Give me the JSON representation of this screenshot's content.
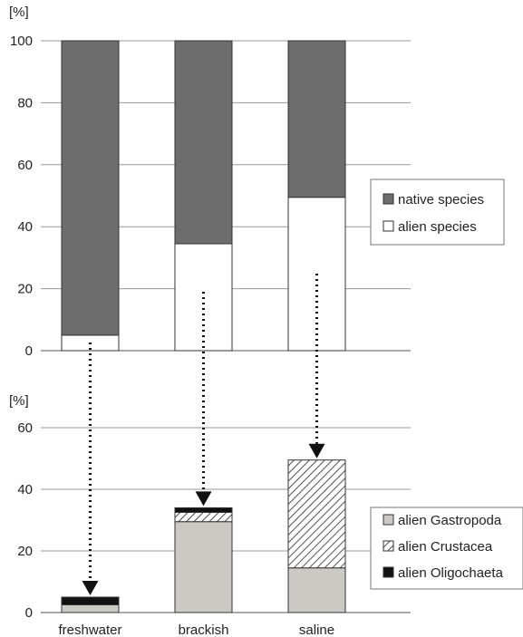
{
  "chart_data": [
    {
      "type": "bar",
      "stacked": true,
      "unit": "[%]",
      "ylim": [
        0,
        100
      ],
      "yticks": [
        0,
        20,
        40,
        60,
        80,
        100
      ],
      "grid": true,
      "categories": [
        "freshwater",
        "brackish",
        "saline"
      ],
      "show_category_labels": false,
      "series": [
        {
          "name": "alien species",
          "values": [
            5,
            34.5,
            49.5
          ],
          "fill": "#ffffff",
          "pattern": "solid"
        },
        {
          "name": "native species",
          "values": [
            95,
            65.5,
            50.5
          ],
          "fill": "#6d6d6d",
          "pattern": "solid"
        }
      ],
      "legend": {
        "position": "right",
        "order": [
          "native species",
          "alien species"
        ]
      }
    },
    {
      "type": "bar",
      "stacked": true,
      "unit": "[%]",
      "ylim": [
        0,
        60
      ],
      "yticks": [
        0,
        20,
        40,
        60
      ],
      "grid": true,
      "categories": [
        "freshwater",
        "brackish",
        "saline"
      ],
      "show_category_labels": true,
      "series": [
        {
          "name": "alien Gastropoda",
          "values": [
            2.5,
            29.5,
            14.5
          ],
          "fill": "#cdc9c5",
          "pattern": "solid"
        },
        {
          "name": "alien Crustacea",
          "values": [
            0,
            3,
            35
          ],
          "fill": "#ffffff",
          "pattern": "hatch"
        },
        {
          "name": "alien Oligochaeta",
          "values": [
            2.5,
            1.5,
            0
          ],
          "fill": "#111111",
          "pattern": "solid"
        }
      ],
      "legend": {
        "position": "right",
        "order": [
          "alien Gastropoda",
          "alien Crustacea",
          "alien Oligochaeta"
        ]
      }
    }
  ],
  "arrows": {
    "style": "dotted",
    "from": "alien species",
    "to": "alien species breakdown",
    "count": 3
  }
}
